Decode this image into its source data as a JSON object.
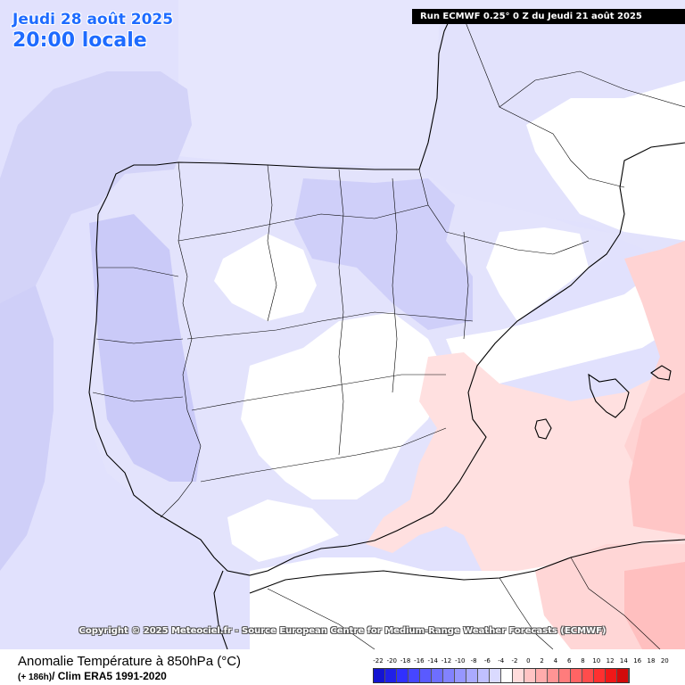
{
  "header": {
    "date": "Jeudi 28 août 2025",
    "local_time": "20:00 locale",
    "run_info": "Run ECMWF 0.25° 0 Z du Jeudi 21 août 2025"
  },
  "copyright": "Copyright © 2025 Meteociel.fr - Source European Centre for Medium-Range Weather Forecasts (ECMWF)",
  "footer": {
    "title": "Anomalie Température à 850hPa (°C)",
    "lead_time": "(+ 186h)",
    "climatology": "/ Clim ERA5 1991-2020"
  },
  "legend": {
    "ticks": [
      "-22",
      "-20",
      "-18",
      "-16",
      "-14",
      "-12",
      "-10",
      "-8",
      "-6",
      "-4",
      "-2",
      "0",
      "2",
      "4",
      "6",
      "8",
      "10",
      "12",
      "14",
      "16",
      "18",
      "20"
    ],
    "colors": [
      "#1414d2",
      "#2020e8",
      "#3030ff",
      "#4646ff",
      "#5a5aff",
      "#6e6eff",
      "#8282ff",
      "#9696ff",
      "#aaaaff",
      "#c0c0ff",
      "#dadaff",
      "#ffffff",
      "#ffdcdc",
      "#ffc4c4",
      "#ffacac",
      "#ff9494",
      "#ff7c7c",
      "#ff6464",
      "#ff4c4c",
      "#ff3030",
      "#f01818",
      "#d20a0a"
    ]
  },
  "colors": {
    "sea_background": "#e1e1fd",
    "land_neutral": "#ffffff",
    "cold_light": "#d9d9fd",
    "cold_medium": "#c6c6f9",
    "warm_light": "#ffe3e3",
    "warm_medium": "#ffcdcd",
    "border_lines": "#000000"
  }
}
